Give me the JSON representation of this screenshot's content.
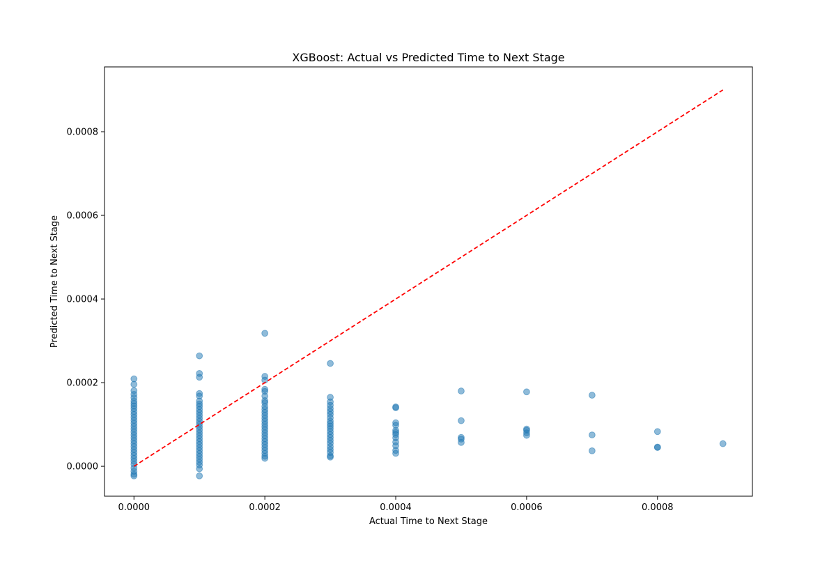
{
  "chart_data": {
    "type": "scatter",
    "title": "XGBoost: Actual vs Predicted Time to Next Stage",
    "xlabel": "Actual Time to Next Stage",
    "ylabel": "Predicted Time to Next Stage",
    "xlim": [
      -4.5e-05,
      0.000945
    ],
    "ylim": [
      -7.15e-05,
      0.000955
    ],
    "x_ticks": [
      "0.0000",
      "0.0002",
      "0.0004",
      "0.0006",
      "0.0008"
    ],
    "x_tick_values": [
      0,
      0.0002,
      0.0004,
      0.0006,
      0.0008
    ],
    "y_ticks": [
      "0.0000",
      "0.0002",
      "0.0004",
      "0.0006",
      "0.0008"
    ],
    "y_tick_values": [
      0,
      0.0002,
      0.0004,
      0.0006,
      0.0008
    ],
    "grid": false,
    "colors": {
      "points": "#1f77b4",
      "reference_line": "#ff0000"
    },
    "reference_line": {
      "style": "dashed",
      "x": [
        0,
        0.0009
      ],
      "y": [
        0,
        0.0009
      ]
    },
    "series": [
      {
        "points": [
          [
            0,
            0.000209
          ],
          [
            0,
            0.000196
          ],
          [
            0,
            0.000181
          ],
          [
            0,
            0.000172
          ],
          [
            0,
            0.000164
          ],
          [
            0,
            0.000156
          ],
          [
            0,
            0.00015
          ],
          [
            0,
            0.000144
          ],
          [
            0,
            0.000138
          ],
          [
            0,
            0.000131
          ],
          [
            0,
            0.000124
          ],
          [
            0,
            0.000117
          ],
          [
            0,
            0.00011
          ],
          [
            0,
            0.000103
          ],
          [
            0,
            9.6e-05
          ],
          [
            0,
            8.9e-05
          ],
          [
            0,
            8.2e-05
          ],
          [
            0,
            7.5e-05
          ],
          [
            0,
            6.8e-05
          ],
          [
            0,
            6.1e-05
          ],
          [
            0,
            5.4e-05
          ],
          [
            0,
            4.7e-05
          ],
          [
            0,
            4e-05
          ],
          [
            0,
            3.3e-05
          ],
          [
            0,
            2.6e-05
          ],
          [
            0,
            1.9e-05
          ],
          [
            0,
            1.2e-05
          ],
          [
            0,
            5e-06
          ],
          [
            0,
            -4e-06
          ],
          [
            0,
            -1.2e-05
          ],
          [
            0,
            -1.9e-05
          ],
          [
            0,
            -2.3e-05
          ],
          [
            0.0001,
            0.000264
          ],
          [
            0.0001,
            0.000222
          ],
          [
            0.0001,
            0.000213
          ],
          [
            0.0001,
            0.000174
          ],
          [
            0.0001,
            0.000168
          ],
          [
            0.0001,
            0.000156
          ],
          [
            0.0001,
            0.000149
          ],
          [
            0.0001,
            0.000143
          ],
          [
            0.0001,
            0.000136
          ],
          [
            0.0001,
            0.000129
          ],
          [
            0.0001,
            0.000122
          ],
          [
            0.0001,
            0.000115
          ],
          [
            0.0001,
            0.000108
          ],
          [
            0.0001,
            0.000101
          ],
          [
            0.0001,
            9.4e-05
          ],
          [
            0.0001,
            8.7e-05
          ],
          [
            0.0001,
            8e-05
          ],
          [
            0.0001,
            7.3e-05
          ],
          [
            0.0001,
            6.6e-05
          ],
          [
            0.0001,
            5.9e-05
          ],
          [
            0.0001,
            5.2e-05
          ],
          [
            0.0001,
            4.5e-05
          ],
          [
            0.0001,
            3.8e-05
          ],
          [
            0.0001,
            3.1e-05
          ],
          [
            0.0001,
            2.4e-05
          ],
          [
            0.0001,
            1.7e-05
          ],
          [
            0.0001,
            1e-05
          ],
          [
            0.0001,
            3e-06
          ],
          [
            0.0001,
            -6e-06
          ],
          [
            0.0001,
            -2.3e-05
          ],
          [
            0.0002,
            0.000318
          ],
          [
            0.0002,
            0.000215
          ],
          [
            0.0002,
            0.000206
          ],
          [
            0.0002,
            0.000184
          ],
          [
            0.0002,
            0.000179
          ],
          [
            0.0002,
            0.000168
          ],
          [
            0.0002,
            0.000157
          ],
          [
            0.0002,
            0.000152
          ],
          [
            0.0002,
            0.000143
          ],
          [
            0.0002,
            0.000136
          ],
          [
            0.0002,
            0.000129
          ],
          [
            0.0002,
            0.000122
          ],
          [
            0.0002,
            0.000115
          ],
          [
            0.0002,
            0.000108
          ],
          [
            0.0002,
            0.000101
          ],
          [
            0.0002,
            9.4e-05
          ],
          [
            0.0002,
            8.7e-05
          ],
          [
            0.0002,
            8e-05
          ],
          [
            0.0002,
            7.3e-05
          ],
          [
            0.0002,
            6.6e-05
          ],
          [
            0.0002,
            5.9e-05
          ],
          [
            0.0002,
            5.2e-05
          ],
          [
            0.0002,
            4.5e-05
          ],
          [
            0.0002,
            3.8e-05
          ],
          [
            0.0002,
            3.1e-05
          ],
          [
            0.0002,
            2.4e-05
          ],
          [
            0.0002,
            1.9e-05
          ],
          [
            0.0003,
            0.000246
          ],
          [
            0.0003,
            0.000165
          ],
          [
            0.0003,
            0.000154
          ],
          [
            0.0003,
            0.000146
          ],
          [
            0.0003,
            0.000138
          ],
          [
            0.0003,
            0.000131
          ],
          [
            0.0003,
            0.000124
          ],
          [
            0.0003,
            0.000116
          ],
          [
            0.0003,
            0.000108
          ],
          [
            0.0003,
            0.000102
          ],
          [
            0.0003,
            9.6e-05
          ],
          [
            0.0003,
            9e-05
          ],
          [
            0.0003,
            8.3e-05
          ],
          [
            0.0003,
            7.6e-05
          ],
          [
            0.0003,
            6.9e-05
          ],
          [
            0.0003,
            6.2e-05
          ],
          [
            0.0003,
            5.5e-05
          ],
          [
            0.0003,
            4.7e-05
          ],
          [
            0.0003,
            4e-05
          ],
          [
            0.0003,
            3.3e-05
          ],
          [
            0.0003,
            2.5e-05
          ],
          [
            0.0003,
            2.2e-05
          ],
          [
            0.0004,
            0.000142
          ],
          [
            0.0004,
            0.00014
          ],
          [
            0.0004,
            0.000104
          ],
          [
            0.0004,
            9.8e-05
          ],
          [
            0.0004,
            8.6e-05
          ],
          [
            0.0004,
            8.1e-05
          ],
          [
            0.0004,
            7.6e-05
          ],
          [
            0.0004,
            6.8e-05
          ],
          [
            0.0004,
            5.8e-05
          ],
          [
            0.0004,
            4.9e-05
          ],
          [
            0.0004,
            3.8e-05
          ],
          [
            0.0004,
            3.1e-05
          ],
          [
            0.0005,
            0.00018
          ],
          [
            0.0005,
            0.000109
          ],
          [
            0.0005,
            6.9e-05
          ],
          [
            0.0005,
            6.5e-05
          ],
          [
            0.0005,
            5.7e-05
          ],
          [
            0.0006,
            0.000178
          ],
          [
            0.0006,
            8.9e-05
          ],
          [
            0.0006,
            8.6e-05
          ],
          [
            0.0006,
            8e-05
          ],
          [
            0.0006,
            7.4e-05
          ],
          [
            0.0007,
            0.00017
          ],
          [
            0.0007,
            7.5e-05
          ],
          [
            0.0007,
            3.7e-05
          ],
          [
            0.0008,
            8.3e-05
          ],
          [
            0.0008,
            4.6e-05
          ],
          [
            0.0008,
            4.5e-05
          ],
          [
            0.0009,
            5.4e-05
          ]
        ]
      }
    ]
  }
}
